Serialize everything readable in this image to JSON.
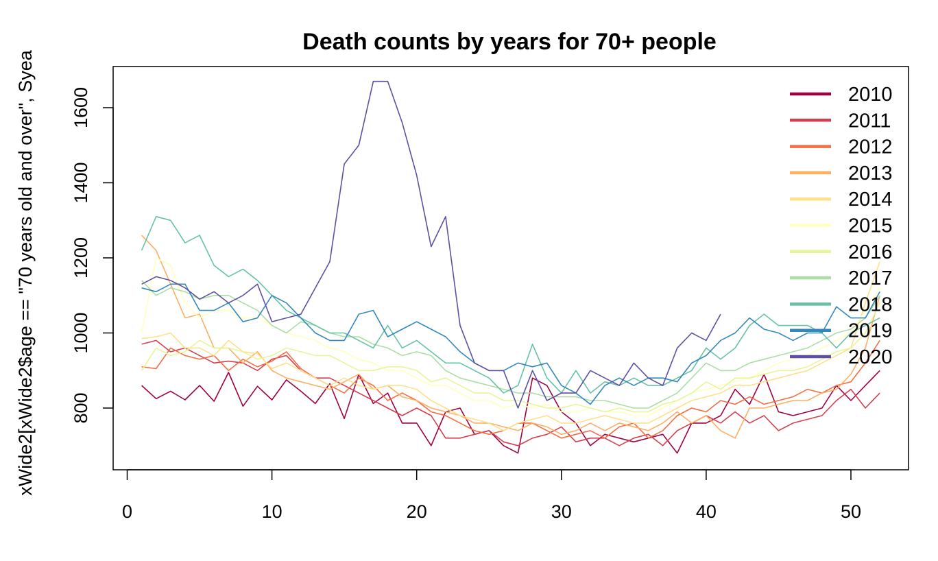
{
  "chart_data": {
    "type": "line",
    "title": "Death counts by years for 70+ people",
    "xlabel": "",
    "ylabel": "xWide2[xWide2$age == \"70 years old and over\", Syea",
    "xlim": [
      0,
      53
    ],
    "ylim": [
      680,
      1690
    ],
    "x_ticks": [
      0,
      10,
      20,
      30,
      40,
      50
    ],
    "y_ticks": [
      800,
      1000,
      1200,
      1400,
      1600
    ],
    "legend": {
      "placement": "top-right",
      "entries": [
        "2010",
        "2011",
        "2012",
        "2013",
        "2014",
        "2015",
        "2016",
        "2017",
        "2018",
        "2019",
        "2020"
      ]
    },
    "series": [
      {
        "name": "2010",
        "color": "#9E0142",
        "values": [
          860,
          825,
          845,
          822,
          860,
          818,
          895,
          805,
          858,
          822,
          875,
          845,
          812,
          865,
          772,
          890,
          812,
          840,
          760,
          760,
          700,
          790,
          800,
          730,
          740,
          700,
          680,
          880,
          860,
          790,
          760,
          700,
          730,
          720,
          710,
          720,
          730,
          680,
          760,
          760,
          780,
          850,
          810,
          890,
          790,
          780,
          790,
          800,
          860,
          820,
          860,
          900
        ]
      },
      {
        "name": "2011",
        "color": "#D53E4F",
        "values": [
          970,
          980,
          950,
          960,
          940,
          920,
          925,
          920,
          900,
          930,
          940,
          900,
          880,
          880,
          860,
          840,
          820,
          800,
          780,
          800,
          780,
          720,
          720,
          730,
          740,
          710,
          700,
          720,
          730,
          750,
          710,
          720,
          720,
          700,
          720,
          730,
          700,
          740,
          760,
          780,
          760,
          790,
          760,
          780,
          740,
          760,
          770,
          780,
          820,
          850,
          800,
          840
        ]
      },
      {
        "name": "2012",
        "color": "#F46D43",
        "values": [
          910,
          905,
          960,
          940,
          930,
          940,
          900,
          930,
          910,
          925,
          950,
          905,
          880,
          860,
          840,
          880,
          860,
          820,
          840,
          820,
          790,
          780,
          760,
          740,
          730,
          740,
          760,
          760,
          740,
          720,
          730,
          740,
          720,
          750,
          760,
          720,
          740,
          780,
          800,
          790,
          820,
          810,
          830,
          810,
          820,
          830,
          850,
          840,
          860,
          870,
          920,
          980
        ]
      },
      {
        "name": "2013",
        "color": "#FDAE61",
        "values": [
          1260,
          1220,
          1130,
          1040,
          1050,
          960,
          960,
          920,
          950,
          900,
          880,
          870,
          860,
          850,
          870,
          890,
          850,
          860,
          830,
          820,
          800,
          790,
          780,
          760,
          760,
          750,
          740,
          760,
          750,
          730,
          740,
          760,
          740,
          760,
          750,
          740,
          760,
          790,
          760,
          780,
          740,
          720,
          800,
          800,
          810,
          820,
          820,
          840,
          850,
          890,
          960,
          1100
        ]
      },
      {
        "name": "2014",
        "color": "#FEE08B",
        "values": [
          985,
          990,
          1000,
          960,
          960,
          940,
          980,
          950,
          945,
          905,
          920,
          900,
          880,
          860,
          880,
          860,
          850,
          860,
          860,
          850,
          820,
          800,
          780,
          770,
          760,
          740,
          760,
          770,
          780,
          760,
          760,
          770,
          780,
          770,
          760,
          760,
          780,
          800,
          820,
          830,
          840,
          860,
          860,
          870,
          880,
          890,
          900,
          920,
          940,
          960,
          1080,
          1190
        ]
      },
      {
        "name": "2015",
        "color": "#FFFFBF",
        "values": [
          1000,
          1200,
          1180,
          1080,
          1040,
          1060,
          1060,
          1040,
          1040,
          1020,
          1000,
          990,
          980,
          960,
          950,
          930,
          920,
          900,
          900,
          880,
          860,
          860,
          840,
          820,
          820,
          800,
          810,
          800,
          810,
          790,
          790,
          800,
          790,
          790,
          780,
          780,
          800,
          820,
          840,
          850,
          860,
          870,
          880,
          900,
          920,
          930,
          940,
          960,
          980,
          1000,
          1060,
          1120
        ]
      },
      {
        "name": "2016",
        "color": "#E6F598",
        "values": [
          900,
          960,
          940,
          950,
          980,
          960,
          960,
          950,
          930,
          940,
          960,
          950,
          940,
          940,
          920,
          900,
          900,
          910,
          910,
          900,
          870,
          880,
          860,
          840,
          840,
          820,
          820,
          810,
          800,
          800,
          810,
          800,
          790,
          800,
          790,
          790,
          810,
          820,
          840,
          870,
          850,
          880,
          880,
          890,
          900,
          900,
          910,
          930,
          950,
          960,
          1000,
          1080
        ]
      },
      {
        "name": "2017",
        "color": "#ABDDA4",
        "values": [
          1140,
          1100,
          1120,
          1110,
          1090,
          1100,
          1100,
          1080,
          1060,
          1020,
          1000,
          1030,
          1020,
          1000,
          990,
          990,
          970,
          960,
          940,
          950,
          940,
          900,
          880,
          870,
          860,
          850,
          840,
          840,
          830,
          830,
          830,
          820,
          820,
          810,
          800,
          800,
          820,
          840,
          880,
          920,
          900,
          900,
          920,
          930,
          940,
          950,
          960,
          980,
          1000,
          1010,
          1040,
          1100
        ]
      },
      {
        "name": "2018",
        "color": "#66C2A5",
        "values": [
          1220,
          1310,
          1300,
          1240,
          1260,
          1180,
          1150,
          1170,
          1140,
          1100,
          1060,
          1040,
          1020,
          1000,
          1000,
          980,
          960,
          1020,
          960,
          980,
          950,
          920,
          920,
          900,
          880,
          840,
          860,
          970,
          880,
          840,
          900,
          840,
          870,
          860,
          880,
          860,
          860,
          880,
          900,
          960,
          930,
          960,
          1020,
          1050,
          1020,
          1020,
          1020,
          1000,
          960,
          1000,
          1020,
          1040
        ]
      },
      {
        "name": "2019",
        "color": "#3288BD",
        "values": [
          1120,
          1110,
          1130,
          1130,
          1060,
          1060,
          1080,
          1030,
          1040,
          1100,
          1080,
          1040,
          1000,
          980,
          980,
          1050,
          1060,
          990,
          1010,
          1030,
          1010,
          990,
          950,
          920,
          900,
          900,
          920,
          910,
          920,
          860,
          840,
          810,
          860,
          880,
          860,
          880,
          880,
          870,
          920,
          940,
          980,
          1000,
          1040,
          1010,
          1000,
          980,
          1000,
          1000,
          1070,
          1040,
          1040,
          1110
        ]
      },
      {
        "name": "2020",
        "color": "#5E4FA2",
        "values": [
          1130,
          1150,
          1140,
          1120,
          1090,
          1110,
          1080,
          1100,
          1130,
          1030,
          1040,
          1050,
          1120,
          1190,
          1450,
          1500,
          1670,
          1670,
          1560,
          1420,
          1230,
          1310,
          1020,
          920,
          900,
          900,
          800,
          900,
          820,
          840,
          840,
          900,
          880,
          860,
          920,
          880,
          860,
          960,
          1000,
          980,
          1050
        ]
      }
    ]
  }
}
